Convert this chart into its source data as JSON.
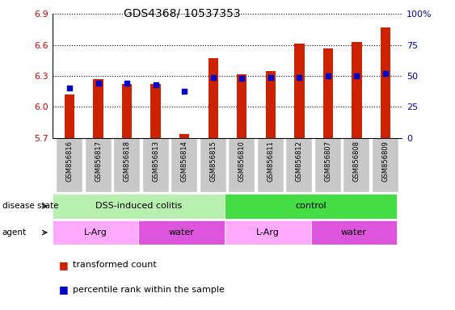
{
  "title": "GDS4368/ 10537353",
  "samples": [
    "GSM856816",
    "GSM856817",
    "GSM856818",
    "GSM856813",
    "GSM856814",
    "GSM856815",
    "GSM856810",
    "GSM856811",
    "GSM856812",
    "GSM856807",
    "GSM856808",
    "GSM856809"
  ],
  "red_values": [
    6.12,
    6.27,
    6.22,
    6.22,
    5.74,
    6.47,
    6.32,
    6.35,
    6.61,
    6.57,
    6.63,
    6.77
  ],
  "blue_values_pct": [
    40,
    44,
    44,
    43,
    38,
    49,
    48,
    49,
    49,
    50,
    50,
    52
  ],
  "y_min": 5.7,
  "y_max": 6.9,
  "y_left_ticks": [
    5.7,
    6.0,
    6.3,
    6.6,
    6.9
  ],
  "y_right_ticks": [
    0,
    25,
    50,
    75,
    100
  ],
  "y_right_labels": [
    "0",
    "25",
    "50",
    "75",
    "100%"
  ],
  "disease_state_groups": [
    {
      "label": "DSS-induced colitis",
      "start": 0,
      "end": 6,
      "color": "#b8f0b0"
    },
    {
      "label": "control",
      "start": 6,
      "end": 12,
      "color": "#44dd44"
    }
  ],
  "agent_groups": [
    {
      "label": "L-Arg",
      "start": 0,
      "end": 3,
      "color": "#ffaaff"
    },
    {
      "label": "water",
      "start": 3,
      "end": 6,
      "color": "#dd55dd"
    },
    {
      "label": "L-Arg",
      "start": 6,
      "end": 9,
      "color": "#ffaaff"
    },
    {
      "label": "water",
      "start": 9,
      "end": 12,
      "color": "#dd55dd"
    }
  ],
  "bar_color": "#cc2200",
  "dot_color": "#0000cc",
  "bar_width": 0.35,
  "dot_size": 20,
  "left_tick_color": "#cc0000",
  "right_tick_color": "#0000aa",
  "tick_label_bg": "#c8c8c8",
  "legend_square_size": 8
}
